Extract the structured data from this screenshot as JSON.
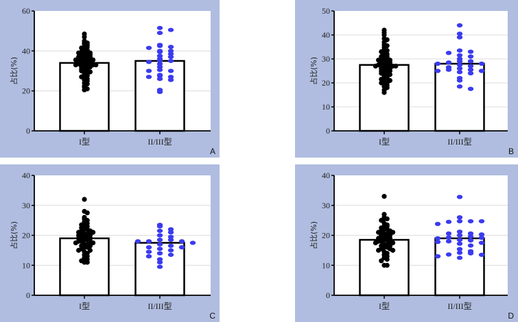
{
  "chart_data": [
    {
      "panel": "A",
      "type": "bar",
      "ylabel": "占比(%)",
      "ylim": [
        0,
        60
      ],
      "yticks": [
        0,
        20,
        40,
        60
      ],
      "categories": [
        "I型",
        "II/III型"
      ],
      "grid": true,
      "series": [
        {
          "name": "I型",
          "mean": 34,
          "color": "#000000",
          "points": [
            48.5,
            47,
            45,
            44,
            44,
            43.5,
            43,
            42,
            42,
            41.5,
            41,
            40.5,
            40,
            40,
            39.5,
            39,
            39,
            38.5,
            38.5,
            38,
            38,
            37.5,
            37.5,
            37,
            37,
            37,
            36.5,
            36.5,
            36,
            36,
            36,
            35.5,
            35.5,
            35,
            35,
            35,
            34.5,
            34.5,
            34,
            34,
            34,
            33.5,
            33.5,
            33,
            33,
            33,
            32.5,
            32.5,
            32,
            32,
            31.5,
            31,
            31,
            30.5,
            30,
            30,
            29.5,
            29,
            28.5,
            28,
            27.5,
            27,
            26.5,
            26,
            25.5,
            25,
            24,
            23.5,
            22.5,
            22,
            21,
            20.5
          ]
        },
        {
          "name": "II/III型",
          "mean": 35,
          "color": "#3b3bef",
          "points": [
            51.5,
            50.5,
            49,
            43,
            42.5,
            42,
            41.5,
            40,
            40,
            39.5,
            38.5,
            37.5,
            37,
            36,
            35,
            35,
            34.5,
            33.5,
            32,
            30.5,
            30,
            30,
            28,
            27.5,
            27,
            27,
            26,
            25.5,
            20.5,
            19.5
          ]
        }
      ]
    },
    {
      "panel": "B",
      "type": "bar",
      "ylabel": "占比(%)",
      "ylim": [
        0,
        50
      ],
      "yticks": [
        0,
        10,
        20,
        30,
        40,
        50
      ],
      "categories": [
        "I型",
        "II/III型"
      ],
      "grid": true,
      "series": [
        {
          "name": "I型",
          "mean": 27.5,
          "color": "#000000",
          "points": [
            42,
            41,
            40,
            38.5,
            38,
            37,
            36,
            35.5,
            35,
            34,
            33.5,
            33,
            32.5,
            32,
            31.5,
            31,
            31,
            30.5,
            30,
            30,
            29.5,
            29.5,
            29,
            29,
            28.5,
            28.5,
            28,
            28,
            28,
            27.5,
            27.5,
            27,
            27,
            27,
            26.5,
            26.5,
            26,
            26,
            25.5,
            25.5,
            25,
            25,
            24.5,
            24,
            24,
            23.5,
            23,
            22.5,
            22,
            22,
            21.5,
            21,
            20.5,
            20,
            20,
            19.5,
            19,
            18.5,
            18,
            17,
            16
          ]
        },
        {
          "name": "II/III型",
          "mean": 28,
          "color": "#3b3bef",
          "points": [
            44,
            40.5,
            39,
            33.5,
            33,
            32.5,
            31.5,
            31,
            30,
            29,
            29,
            28.5,
            28,
            28,
            27.5,
            27,
            26.5,
            26,
            25.5,
            25.5,
            25,
            25,
            24.5,
            24,
            22,
            21,
            18.5,
            17.5
          ]
        }
      ]
    },
    {
      "panel": "C",
      "type": "bar",
      "ylabel": "占比(%)",
      "ylim": [
        0,
        40
      ],
      "yticks": [
        0,
        10,
        20,
        30,
        40
      ],
      "categories": [
        "I型",
        "II/III型"
      ],
      "grid": true,
      "series": [
        {
          "name": "I型",
          "mean": 19,
          "color": "#000000",
          "points": [
            32,
            28,
            27.5,
            26,
            25.5,
            25,
            24.5,
            24,
            23.5,
            23,
            23,
            22.5,
            22,
            22,
            21.5,
            21.5,
            21,
            21,
            20.5,
            20.5,
            20,
            20,
            20,
            19.5,
            19.5,
            19,
            19,
            19,
            18.5,
            18.5,
            18,
            18,
            18,
            17.5,
            17.5,
            17,
            17,
            16.5,
            16.5,
            16,
            16,
            15.5,
            15,
            15,
            14.5,
            14,
            13.5,
            13,
            12.5,
            12,
            11.5,
            11,
            11
          ]
        },
        {
          "name": "II/III型",
          "mean": 17.5,
          "color": "#3b3bef",
          "points": [
            23.5,
            23,
            22,
            21.5,
            21,
            20,
            19.5,
            18.5,
            18.5,
            18,
            18,
            18,
            17.5,
            17,
            16.5,
            16,
            16,
            15.5,
            15,
            14.5,
            14,
            13.5,
            13,
            12,
            11,
            9.5
          ]
        }
      ]
    },
    {
      "panel": "D",
      "type": "bar",
      "ylabel": "占比(%)",
      "ylim": [
        0,
        40
      ],
      "yticks": [
        0,
        10,
        20,
        30,
        40
      ],
      "categories": [
        "I型",
        "II/III型"
      ],
      "grid": true,
      "series": [
        {
          "name": "I型",
          "mean": 18.5,
          "color": "#000000",
          "points": [
            33,
            27,
            26,
            25.5,
            25.5,
            25,
            24,
            23.5,
            23,
            23,
            22.5,
            22,
            22,
            21.5,
            21.5,
            21,
            21,
            20.5,
            20.5,
            20,
            20,
            19.5,
            19.5,
            19,
            19,
            19,
            18.5,
            18.5,
            18,
            18,
            18,
            17.5,
            17.5,
            17,
            17,
            16.5,
            16.5,
            16,
            16,
            15.5,
            15.5,
            15,
            15,
            14.5,
            14,
            13.5,
            13,
            12.5,
            12,
            11.5,
            10,
            10
          ]
        },
        {
          "name": "II/III型",
          "mean": 19,
          "color": "#3b3bef",
          "points": [
            32.8,
            26,
            24.7,
            24.7,
            24.5,
            24.7,
            23.8,
            21.2,
            20.6,
            20.6,
            20.3,
            20,
            19.6,
            19.3,
            19.2,
            19,
            18.5,
            18.3,
            18,
            17.5,
            17.8,
            17.2,
            16.6,
            15.4,
            14.7,
            14.2,
            14,
            13.6,
            13.5,
            13,
            12.5
          ]
        }
      ]
    }
  ]
}
